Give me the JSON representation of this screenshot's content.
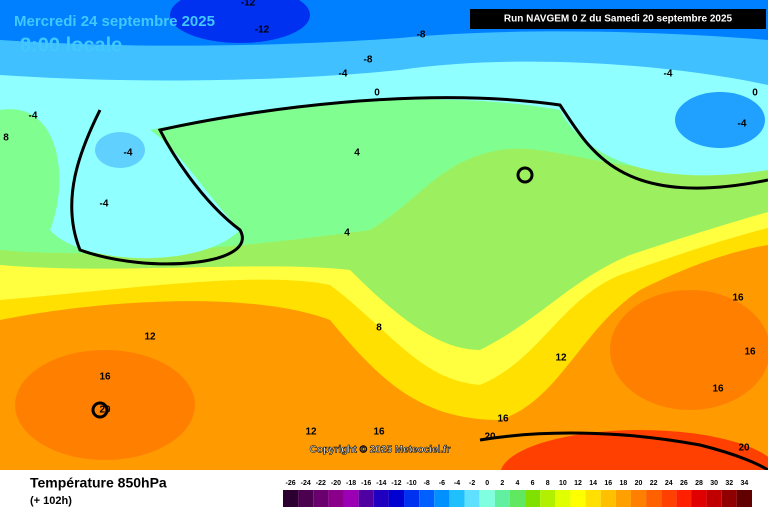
{
  "header": {
    "title": "Mercredi 24 septembre 2025",
    "time": "8:00 locale",
    "run": "Run NAVGEM 0 Z du Samedi 20 septembre 2025"
  },
  "map": {
    "copyright": "Copyright © 2025 Meteociel.fr",
    "contour_labels": [
      -12,
      -12,
      -8,
      -8,
      -4,
      0,
      -4,
      0,
      -4,
      -4,
      8,
      -4,
      -4,
      4,
      4,
      8,
      12,
      16,
      20,
      12,
      16,
      16,
      16,
      16,
      20,
      12,
      16,
      20
    ]
  },
  "footer": {
    "variable": "Température 850hPa",
    "lead": "(+ 102h)"
  },
  "colorbar": {
    "values": [
      -26,
      -24,
      -22,
      -20,
      -18,
      -16,
      -14,
      -12,
      -10,
      -8,
      -6,
      -4,
      -2,
      0,
      2,
      4,
      6,
      8,
      10,
      12,
      14,
      16,
      18,
      20,
      22,
      24,
      26,
      28,
      30,
      32,
      34
    ],
    "colors": [
      "#2b0030",
      "#4b0050",
      "#6a006e",
      "#8a008a",
      "#9b00b4",
      "#5000a0",
      "#2000c0",
      "#0000d0",
      "#0030f0",
      "#0060ff",
      "#0090ff",
      "#20c0ff",
      "#60e0ff",
      "#80ffe0",
      "#60f0a0",
      "#60e860",
      "#80e000",
      "#b0f000",
      "#e0ff00",
      "#ffff00",
      "#ffe000",
      "#ffc000",
      "#ffa000",
      "#ff8000",
      "#ff6000",
      "#ff4000",
      "#ff2000",
      "#e00000",
      "#c00000",
      "#900000",
      "#600000"
    ]
  }
}
